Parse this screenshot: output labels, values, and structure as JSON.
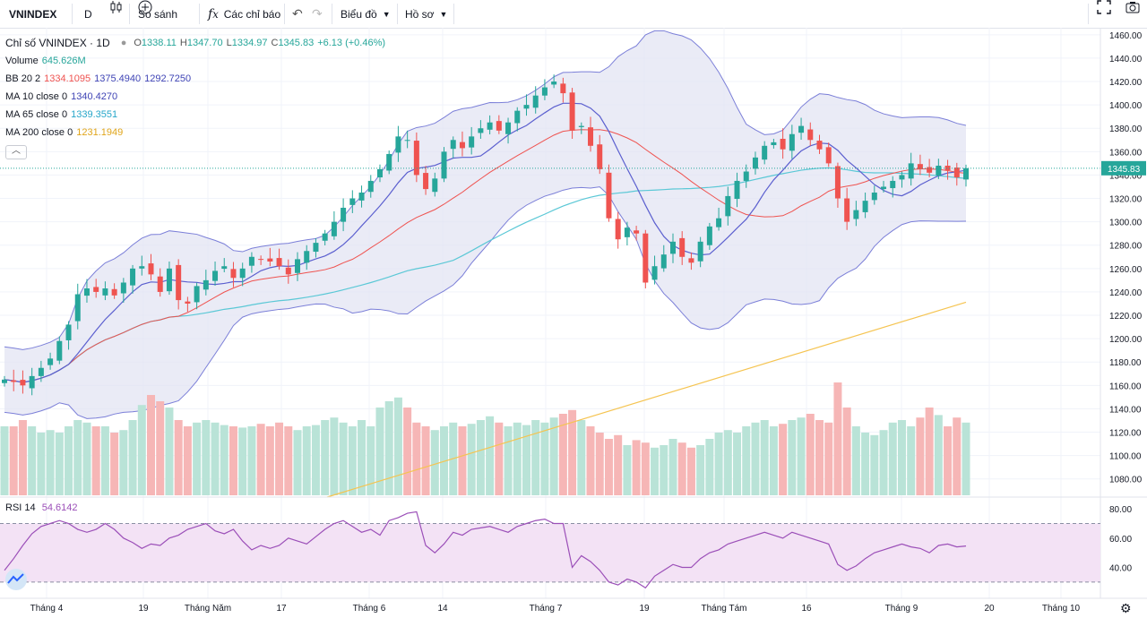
{
  "toolbar": {
    "symbol": "VNINDEX",
    "interval": "D",
    "compare_label": "So sánh",
    "indicators_label": "Các chỉ báo",
    "chart_type_label": "Biểu đồ",
    "profile_label": "Hồ sơ"
  },
  "legend": {
    "title": "Chỉ số VNINDEX · 1D",
    "ohlc": {
      "o_label": "O",
      "o": "1338.11",
      "h_label": "H",
      "h": "1347.70",
      "l_label": "L",
      "l": "1334.97",
      "c_label": "C",
      "c": "1345.83",
      "change": "+6.13 (+0.46%)"
    },
    "volume": {
      "label": "Volume",
      "value": "645.626M"
    },
    "bb": {
      "label": "BB 20 2",
      "mid": "1334.1095",
      "upper": "1375.4940",
      "lower": "1292.7250"
    },
    "ma10": {
      "label": "MA 10 close 0",
      "value": "1340.4270"
    },
    "ma65": {
      "label": "MA 65 close 0",
      "value": "1339.3551"
    },
    "ma200": {
      "label": "MA 200 close 0",
      "value": "1231.1949"
    },
    "rsi": {
      "label": "RSI 14",
      "value": "54.6142"
    }
  },
  "colors": {
    "up": "#26a69a",
    "down": "#ef5350",
    "bb_fill": "#e3e4f3",
    "bb_line": "#7b7fd8",
    "ma10": "#5b5fcf",
    "ma65": "#5bc8d6",
    "ma200": "#f5c451",
    "ma_red": "#ef5350",
    "rsi_line": "#9b4fb8",
    "rsi_fill": "#f3e2f5"
  },
  "chart_data": {
    "type": "candlestick",
    "title": "Chỉ số VNINDEX · 1D",
    "price_axis": {
      "ticks": [
        1080,
        1100,
        1120,
        1140,
        1160,
        1180,
        1200,
        1220,
        1240,
        1260,
        1280,
        1300,
        1320,
        1340,
        1360,
        1380,
        1400,
        1420,
        1440,
        1460
      ],
      "range": [
        1066,
        1466
      ]
    },
    "last_price_label": "1345.83",
    "x_labels": [
      "Tháng 4",
      "19",
      "Tháng Năm",
      "17",
      "Tháng 6",
      "14",
      "Tháng 7",
      "19",
      "Tháng Tám",
      "16",
      "Tháng 9",
      "20",
      "Tháng 10"
    ],
    "closes": [
      1165,
      1163,
      1160,
      1168,
      1175,
      1183,
      1198,
      1212,
      1238,
      1243,
      1240,
      1243,
      1237,
      1248,
      1260,
      1262,
      1255,
      1240,
      1260,
      1233,
      1230,
      1245,
      1250,
      1258,
      1262,
      1252,
      1260,
      1270,
      1268,
      1266,
      1262,
      1255,
      1268,
      1275,
      1282,
      1290,
      1300,
      1312,
      1320,
      1325,
      1335,
      1345,
      1358,
      1373,
      1370,
      1340,
      1328,
      1337,
      1360,
      1370,
      1363,
      1373,
      1380,
      1385,
      1378,
      1385,
      1395,
      1400,
      1408,
      1415,
      1420,
      1410,
      1378,
      1382,
      1365,
      1345,
      1303,
      1285,
      1295,
      1290,
      1248,
      1262,
      1272,
      1283,
      1270,
      1265,
      1283,
      1296,
      1303,
      1322,
      1335,
      1343,
      1355,
      1365,
      1368,
      1362,
      1375,
      1382,
      1370,
      1362,
      1350,
      1320,
      1300,
      1310,
      1318,
      1325,
      1330,
      1335,
      1340,
      1350,
      1345,
      1342,
      1348,
      1344,
      1338,
      1345.83
    ],
    "volume_relative": [
      0.55,
      0.55,
      0.6,
      0.55,
      0.5,
      0.52,
      0.5,
      0.55,
      0.6,
      0.58,
      0.55,
      0.55,
      0.5,
      0.52,
      0.6,
      0.72,
      0.8,
      0.75,
      0.7,
      0.6,
      0.55,
      0.58,
      0.6,
      0.58,
      0.56,
      0.55,
      0.54,
      0.55,
      0.57,
      0.55,
      0.58,
      0.55,
      0.52,
      0.55,
      0.56,
      0.6,
      0.62,
      0.58,
      0.55,
      0.6,
      0.55,
      0.7,
      0.75,
      0.78,
      0.7,
      0.58,
      0.55,
      0.52,
      0.55,
      0.58,
      0.55,
      0.57,
      0.6,
      0.63,
      0.58,
      0.55,
      0.58,
      0.56,
      0.6,
      0.58,
      0.62,
      0.65,
      0.68,
      0.6,
      0.55,
      0.5,
      0.45,
      0.48,
      0.4,
      0.44,
      0.42,
      0.38,
      0.4,
      0.45,
      0.42,
      0.38,
      0.4,
      0.45,
      0.5,
      0.52,
      0.5,
      0.55,
      0.58,
      0.6,
      0.55,
      0.57,
      0.6,
      0.62,
      0.65,
      0.6,
      0.58,
      0.9,
      0.7,
      0.55,
      0.5,
      0.48,
      0.52,
      0.58,
      0.6,
      0.55,
      0.62,
      0.7,
      0.64,
      0.55,
      0.62,
      0.58
    ],
    "ma200_start": [
      365,
      555
    ],
    "rsi": {
      "axis_ticks": [
        40,
        60,
        80
      ],
      "upper_band": 70,
      "lower_band": 30,
      "last": 54.6142,
      "values": [
        38,
        46,
        55,
        63,
        68,
        70,
        72,
        70,
        66,
        64,
        66,
        70,
        66,
        60,
        57,
        53,
        56,
        55,
        60,
        62,
        66,
        68,
        70,
        65,
        63,
        66,
        58,
        52,
        55,
        53,
        55,
        60,
        58,
        56,
        61,
        66,
        70,
        72,
        68,
        64,
        66,
        62,
        72,
        74,
        77,
        78,
        55,
        50,
        56,
        64,
        62,
        66,
        67,
        68,
        66,
        64,
        68,
        70,
        72,
        73,
        70,
        70,
        40,
        48,
        44,
        38,
        30,
        28,
        32,
        30,
        26,
        34,
        38,
        42,
        40,
        40,
        46,
        50,
        52,
        56,
        58,
        60,
        62,
        64,
        62,
        60,
        64,
        62,
        60,
        58,
        56,
        42,
        38,
        41,
        46,
        50,
        52,
        54,
        56,
        54,
        53,
        50,
        55,
        56,
        54,
        54.6
      ]
    }
  }
}
